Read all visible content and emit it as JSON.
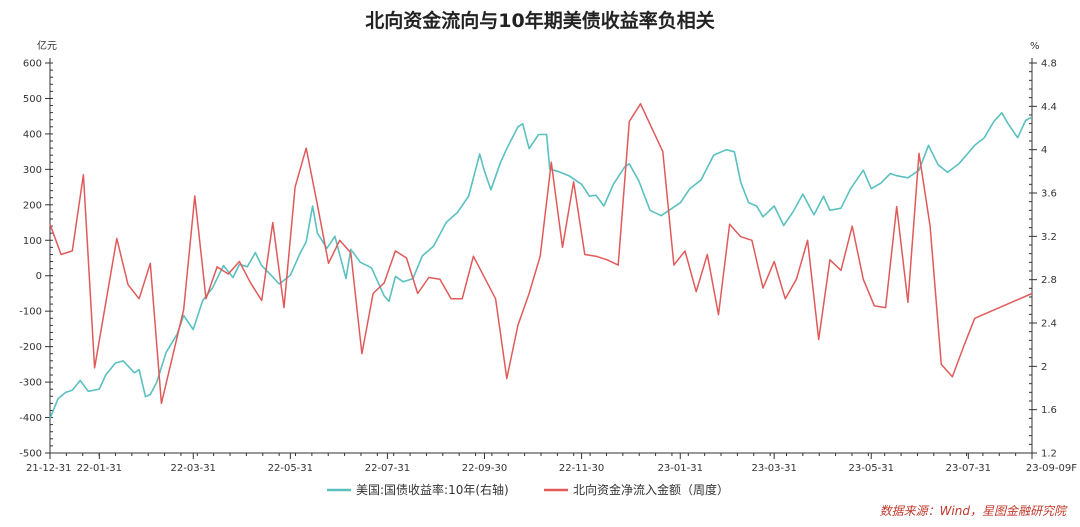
{
  "chart_data": {
    "type": "line",
    "title": "北向资金流向与10年期美债收益率负相关",
    "left_unit": "亿元",
    "right_unit": "%",
    "left_axis": {
      "min": -500,
      "max": 600,
      "ticks": [
        "600",
        "500",
        "400",
        "300",
        "200",
        "100",
        "0",
        "-100",
        "-200",
        "-300",
        "-400",
        "-500"
      ]
    },
    "right_axis": {
      "min": 1.2,
      "max": 4.8,
      "ticks": [
        "4.8",
        "4.4",
        "4",
        "3.6",
        "3.2",
        "2.8",
        "2.4",
        "2",
        "1.6",
        "1.2"
      ]
    },
    "x_ticks": [
      "21-12-31",
      "22-01-31",
      "22-03-31",
      "22-05-31",
      "22-07-31",
      "22-09-30",
      "22-11-30",
      "23-01-31",
      "23-03-31",
      "23-05-31",
      "23-07-31",
      "23-09-09F"
    ],
    "x_tick_dates": [
      "2021-12-31",
      "2022-01-31",
      "2022-03-31",
      "2022-05-31",
      "2022-07-31",
      "2022-09-30",
      "2022-11-30",
      "2023-01-31",
      "2023-03-31",
      "2023-05-31",
      "2023-07-31",
      "2023-09-09"
    ],
    "series": [
      {
        "name": "美国:国债收益率:10年(右轴)",
        "axis": "right",
        "color": "#5bc0c0",
        "points": [
          [
            "2021-12-31",
            1.52
          ],
          [
            "2022-01-05",
            1.7
          ],
          [
            "2022-01-10",
            1.76
          ],
          [
            "2022-01-14",
            1.78
          ],
          [
            "2022-01-19",
            1.87
          ],
          [
            "2022-01-24",
            1.77
          ],
          [
            "2022-01-31",
            1.79
          ],
          [
            "2022-02-04",
            1.92
          ],
          [
            "2022-02-10",
            2.03
          ],
          [
            "2022-02-15",
            2.05
          ],
          [
            "2022-02-22",
            1.94
          ],
          [
            "2022-02-25",
            1.97
          ],
          [
            "2022-03-01",
            1.72
          ],
          [
            "2022-03-04",
            1.74
          ],
          [
            "2022-03-08",
            1.85
          ],
          [
            "2022-03-14",
            2.13
          ],
          [
            "2022-03-21",
            2.3
          ],
          [
            "2022-03-25",
            2.47
          ],
          [
            "2022-03-31",
            2.34
          ],
          [
            "2022-04-06",
            2.61
          ],
          [
            "2022-04-12",
            2.72
          ],
          [
            "2022-04-19",
            2.93
          ],
          [
            "2022-04-25",
            2.82
          ],
          [
            "2022-04-29",
            2.94
          ],
          [
            "2022-05-04",
            2.92
          ],
          [
            "2022-05-09",
            3.05
          ],
          [
            "2022-05-13",
            2.93
          ],
          [
            "2022-05-19",
            2.84
          ],
          [
            "2022-05-24",
            2.76
          ],
          [
            "2022-05-31",
            2.84
          ],
          [
            "2022-06-06",
            3.04
          ],
          [
            "2022-06-10",
            3.15
          ],
          [
            "2022-06-14",
            3.48
          ],
          [
            "2022-06-17",
            3.23
          ],
          [
            "2022-06-23",
            3.09
          ],
          [
            "2022-06-28",
            3.2
          ],
          [
            "2022-07-05",
            2.81
          ],
          [
            "2022-07-08",
            3.08
          ],
          [
            "2022-07-14",
            2.96
          ],
          [
            "2022-07-21",
            2.91
          ],
          [
            "2022-07-29",
            2.65
          ],
          [
            "2022-08-01",
            2.6
          ],
          [
            "2022-08-05",
            2.83
          ],
          [
            "2022-08-10",
            2.78
          ],
          [
            "2022-08-16",
            2.81
          ],
          [
            "2022-08-22",
            3.02
          ],
          [
            "2022-08-29",
            3.11
          ],
          [
            "2022-09-06",
            3.33
          ],
          [
            "2022-09-13",
            3.42
          ],
          [
            "2022-09-20",
            3.57
          ],
          [
            "2022-09-27",
            3.96
          ],
          [
            "2022-09-30",
            3.8
          ],
          [
            "2022-10-04",
            3.63
          ],
          [
            "2022-10-10",
            3.88
          ],
          [
            "2022-10-14",
            4.01
          ],
          [
            "2022-10-21",
            4.21
          ],
          [
            "2022-10-24",
            4.24
          ],
          [
            "2022-10-28",
            4.01
          ],
          [
            "2022-11-03",
            4.14
          ],
          [
            "2022-11-08",
            4.14
          ],
          [
            "2022-11-10",
            3.82
          ],
          [
            "2022-11-15",
            3.8
          ],
          [
            "2022-11-22",
            3.76
          ],
          [
            "2022-11-30",
            3.68
          ],
          [
            "2022-12-05",
            3.57
          ],
          [
            "2022-12-09",
            3.58
          ],
          [
            "2022-12-14",
            3.48
          ],
          [
            "2022-12-20",
            3.68
          ],
          [
            "2022-12-27",
            3.84
          ],
          [
            "2022-12-30",
            3.87
          ],
          [
            "2023-01-05",
            3.71
          ],
          [
            "2023-01-12",
            3.44
          ],
          [
            "2023-01-19",
            3.39
          ],
          [
            "2023-01-25",
            3.45
          ],
          [
            "2023-01-31",
            3.51
          ],
          [
            "2023-02-06",
            3.64
          ],
          [
            "2023-02-13",
            3.72
          ],
          [
            "2023-02-21",
            3.95
          ],
          [
            "2023-03-01",
            4.0
          ],
          [
            "2023-03-06",
            3.98
          ],
          [
            "2023-03-10",
            3.7
          ],
          [
            "2023-03-15",
            3.51
          ],
          [
            "2023-03-20",
            3.48
          ],
          [
            "2023-03-24",
            3.38
          ],
          [
            "2023-03-31",
            3.48
          ],
          [
            "2023-04-06",
            3.3
          ],
          [
            "2023-04-12",
            3.43
          ],
          [
            "2023-04-18",
            3.59
          ],
          [
            "2023-04-25",
            3.4
          ],
          [
            "2023-05-01",
            3.57
          ],
          [
            "2023-05-05",
            3.44
          ],
          [
            "2023-05-12",
            3.46
          ],
          [
            "2023-05-18",
            3.64
          ],
          [
            "2023-05-26",
            3.81
          ],
          [
            "2023-05-31",
            3.64
          ],
          [
            "2023-06-06",
            3.69
          ],
          [
            "2023-06-12",
            3.78
          ],
          [
            "2023-06-16",
            3.76
          ],
          [
            "2023-06-23",
            3.74
          ],
          [
            "2023-06-30",
            3.81
          ],
          [
            "2023-07-06",
            4.04
          ],
          [
            "2023-07-12",
            3.86
          ],
          [
            "2023-07-18",
            3.79
          ],
          [
            "2023-07-25",
            3.87
          ],
          [
            "2023-07-31",
            3.97
          ],
          [
            "2023-08-04",
            4.04
          ],
          [
            "2023-08-10",
            4.11
          ],
          [
            "2023-08-16",
            4.26
          ],
          [
            "2023-08-21",
            4.34
          ],
          [
            "2023-08-25",
            4.24
          ],
          [
            "2023-08-31",
            4.11
          ],
          [
            "2023-09-05",
            4.27
          ],
          [
            "2023-09-09",
            4.3
          ]
        ]
      },
      {
        "name": "北向资金净流入金额（周度）",
        "axis": "left",
        "color": "#e05a5a",
        "points": [
          [
            "2021-12-31",
            145
          ],
          [
            "2022-01-07",
            60
          ],
          [
            "2022-01-14",
            70
          ],
          [
            "2022-01-21",
            285
          ],
          [
            "2022-01-28",
            -260
          ],
          [
            "2022-02-11",
            105
          ],
          [
            "2022-02-18",
            -25
          ],
          [
            "2022-02-25",
            -65
          ],
          [
            "2022-03-04",
            35
          ],
          [
            "2022-03-11",
            -360
          ],
          [
            "2022-03-25",
            -95
          ],
          [
            "2022-04-01",
            225
          ],
          [
            "2022-04-08",
            -65
          ],
          [
            "2022-04-15",
            25
          ],
          [
            "2022-04-22",
            5
          ],
          [
            "2022-04-29",
            40
          ],
          [
            "2022-05-06",
            -20
          ],
          [
            "2022-05-13",
            -70
          ],
          [
            "2022-05-20",
            150
          ],
          [
            "2022-05-27",
            -90
          ],
          [
            "2022-06-03",
            250
          ],
          [
            "2022-06-10",
            360
          ],
          [
            "2022-06-17",
            200
          ],
          [
            "2022-06-24",
            35
          ],
          [
            "2022-07-01",
            100
          ],
          [
            "2022-07-08",
            65
          ],
          [
            "2022-07-15",
            -220
          ],
          [
            "2022-07-22",
            -50
          ],
          [
            "2022-07-29",
            -20
          ],
          [
            "2022-08-05",
            70
          ],
          [
            "2022-08-12",
            50
          ],
          [
            "2022-08-19",
            -50
          ],
          [
            "2022-08-26",
            -5
          ],
          [
            "2022-09-02",
            -10
          ],
          [
            "2022-09-09",
            -65
          ],
          [
            "2022-09-16",
            -65
          ],
          [
            "2022-09-23",
            55
          ],
          [
            "2022-10-07",
            -65
          ],
          [
            "2022-10-14",
            -290
          ],
          [
            "2022-10-21",
            -140
          ],
          [
            "2022-10-28",
            -50
          ],
          [
            "2022-11-04",
            55
          ],
          [
            "2022-11-11",
            320
          ],
          [
            "2022-11-18",
            80
          ],
          [
            "2022-11-25",
            265
          ],
          [
            "2022-12-02",
            60
          ],
          [
            "2022-12-09",
            55
          ],
          [
            "2022-12-16",
            45
          ],
          [
            "2022-12-23",
            30
          ],
          [
            "2022-12-30",
            435
          ],
          [
            "2023-01-06",
            485
          ],
          [
            "2023-01-20",
            350
          ],
          [
            "2023-01-27",
            30
          ],
          [
            "2023-02-03",
            70
          ],
          [
            "2023-02-10",
            -45
          ],
          [
            "2023-02-17",
            60
          ],
          [
            "2023-02-24",
            -110
          ],
          [
            "2023-03-03",
            145
          ],
          [
            "2023-03-10",
            110
          ],
          [
            "2023-03-17",
            100
          ],
          [
            "2023-03-24",
            -35
          ],
          [
            "2023-03-31",
            40
          ],
          [
            "2023-04-07",
            -65
          ],
          [
            "2023-04-14",
            -10
          ],
          [
            "2023-04-21",
            100
          ],
          [
            "2023-04-28",
            -180
          ],
          [
            "2023-05-05",
            45
          ],
          [
            "2023-05-12",
            15
          ],
          [
            "2023-05-19",
            140
          ],
          [
            "2023-05-26",
            -10
          ],
          [
            "2023-06-02",
            -85
          ],
          [
            "2023-06-09",
            -90
          ],
          [
            "2023-06-16",
            195
          ],
          [
            "2023-06-23",
            -75
          ],
          [
            "2023-06-30",
            345
          ],
          [
            "2023-07-07",
            140
          ],
          [
            "2023-07-14",
            -250
          ],
          [
            "2023-07-21",
            -285
          ],
          [
            "2023-07-28",
            -200
          ],
          [
            "2023-08-04",
            -120
          ],
          [
            "2023-09-09",
            -50
          ]
        ]
      }
    ],
    "legend_position": "bottom",
    "grid": false,
    "source": "数据来源：Wind，星图金融研究院"
  }
}
